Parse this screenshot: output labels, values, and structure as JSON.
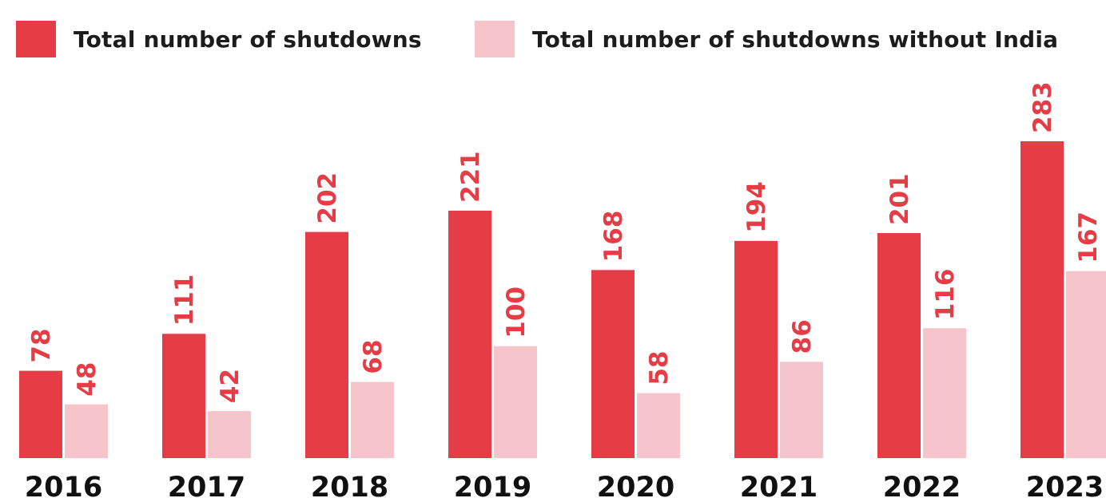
{
  "chart_data": {
    "type": "bar",
    "categories": [
      "2016",
      "2017",
      "2018",
      "2019",
      "2020",
      "2021",
      "2022",
      "2023"
    ],
    "series": [
      {
        "name": "Total number of shutdowns",
        "values": [
          78,
          111,
          202,
          221,
          168,
          194,
          201,
          283
        ],
        "color": "#e63c46"
      },
      {
        "name": "Total number of shutdowns without India",
        "values": [
          48,
          42,
          68,
          100,
          58,
          86,
          116,
          167
        ],
        "color": "#f5c5cb"
      }
    ],
    "label_color": "#e63c46",
    "tick_color": "#111111",
    "legend_position": "top",
    "grid": false,
    "ylim": [
      0,
      283
    ]
  }
}
